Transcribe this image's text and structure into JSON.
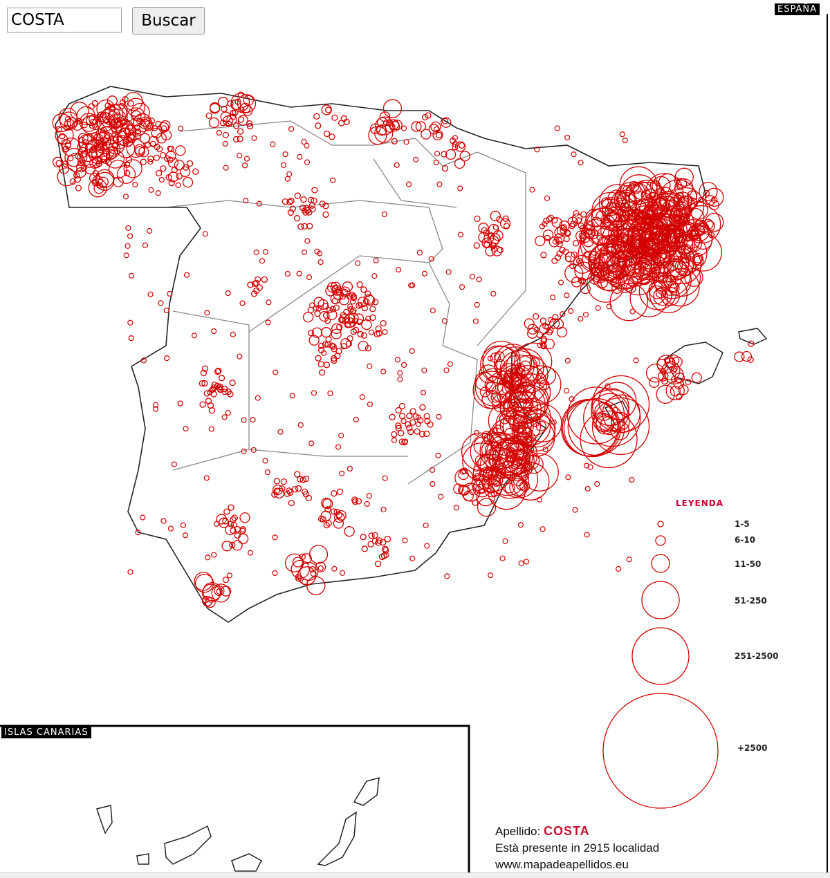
{
  "search": {
    "value": "COSTA",
    "button_label": "Buscar"
  },
  "map": {
    "title_tag": "ESPAÑA",
    "canarias_tag": "ISLAS CANARIAS",
    "marker_color": "#d40000",
    "clusters": [
      {
        "lon": -8.6,
        "lat": 42.9,
        "count": 120,
        "size_class": 2
      },
      {
        "lon": -8.2,
        "lat": 43.3,
        "count": 40,
        "size_class": 2
      },
      {
        "lon": -7.5,
        "lat": 43.0,
        "count": 30,
        "size_class": 1
      },
      {
        "lon": -7.0,
        "lat": 42.6,
        "count": 20,
        "size_class": 1
      },
      {
        "lon": -6.0,
        "lat": 43.3,
        "count": 25,
        "size_class": 1
      },
      {
        "lon": -5.7,
        "lat": 43.5,
        "count": 8,
        "size_class": 2
      },
      {
        "lon": -4.0,
        "lat": 43.3,
        "count": 10,
        "size_class": 1
      },
      {
        "lon": -2.9,
        "lat": 43.25,
        "count": 15,
        "size_class": 2
      },
      {
        "lon": -2.0,
        "lat": 43.2,
        "count": 12,
        "size_class": 1
      },
      {
        "lon": -1.6,
        "lat": 42.8,
        "count": 10,
        "size_class": 1
      },
      {
        "lon": -4.5,
        "lat": 42.0,
        "count": 25,
        "size_class": 0
      },
      {
        "lon": -5.5,
        "lat": 40.9,
        "count": 8,
        "size_class": 0
      },
      {
        "lon": -3.7,
        "lat": 40.4,
        "count": 90,
        "size_class": 1
      },
      {
        "lon": -4.0,
        "lat": 39.8,
        "count": 10,
        "size_class": 0
      },
      {
        "lon": -6.3,
        "lat": 39.4,
        "count": 25,
        "size_class": 0
      },
      {
        "lon": -2.5,
        "lat": 38.9,
        "count": 25,
        "size_class": 0
      },
      {
        "lon": -0.9,
        "lat": 41.65,
        "count": 25,
        "size_class": 1
      },
      {
        "lon": 0.6,
        "lat": 41.6,
        "count": 50,
        "size_class": 1
      },
      {
        "lon": 2.15,
        "lat": 41.5,
        "count": 250,
        "size_class": 3
      },
      {
        "lon": 2.8,
        "lat": 41.95,
        "count": 90,
        "size_class": 2
      },
      {
        "lon": 1.2,
        "lat": 41.1,
        "count": 30,
        "size_class": 2
      },
      {
        "lon": 0.2,
        "lat": 40.3,
        "count": 20,
        "size_class": 1
      },
      {
        "lon": -0.4,
        "lat": 39.5,
        "count": 60,
        "size_class": 3
      },
      {
        "lon": -0.2,
        "lat": 38.9,
        "count": 25,
        "size_class": 3
      },
      {
        "lon": -0.5,
        "lat": 38.4,
        "count": 70,
        "size_class": 3
      },
      {
        "lon": -1.1,
        "lat": 38.0,
        "count": 30,
        "size_class": 2
      },
      {
        "lon": -3.8,
        "lat": 37.6,
        "count": 20,
        "size_class": 1
      },
      {
        "lon": -4.8,
        "lat": 37.9,
        "count": 20,
        "size_class": 1
      },
      {
        "lon": -5.9,
        "lat": 37.4,
        "count": 20,
        "size_class": 1
      },
      {
        "lon": -4.4,
        "lat": 36.75,
        "count": 15,
        "size_class": 2
      },
      {
        "lon": -6.2,
        "lat": 36.5,
        "count": 12,
        "size_class": 2
      },
      {
        "lon": -3.2,
        "lat": 37.1,
        "count": 15,
        "size_class": 0
      },
      {
        "lon": 2.7,
        "lat": 39.6,
        "count": 25,
        "size_class": 2
      },
      {
        "lon": 1.4,
        "lat": 38.95,
        "count": 20,
        "size_class": 4
      },
      {
        "lon": 4.1,
        "lat": 39.95,
        "count": 4,
        "size_class": 1
      }
    ]
  },
  "legend": {
    "title": "LEYENDA",
    "items": [
      "1-5",
      "6-10",
      "11-50",
      "51-250",
      "251-2500",
      "+2500"
    ]
  },
  "info": {
    "surname_label": "Apellido:",
    "surname": "COSTA",
    "presence": "Està presente in 2915 localidad",
    "website": "www.mapadeapellidos.eu"
  }
}
